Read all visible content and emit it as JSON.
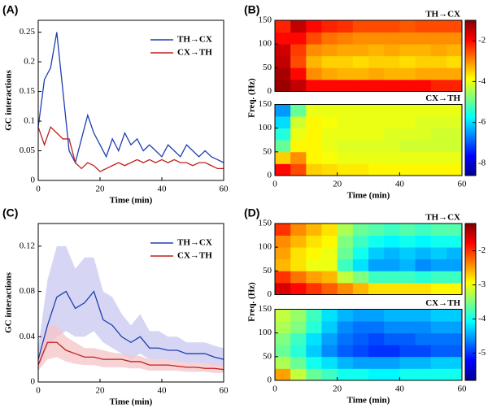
{
  "chart_data": [
    {
      "type": "line",
      "label": "(A)",
      "xlabel": "Time (min)",
      "ylabel": "GC interactions",
      "xlim": [
        0,
        60
      ],
      "xticks": [
        0,
        20,
        40,
        60
      ],
      "ylim": [
        0,
        0.27
      ],
      "yticks": [
        0,
        0.05,
        0.1,
        0.15,
        0.2,
        0.25
      ],
      "x": [
        0,
        2,
        4,
        6,
        8,
        10,
        12,
        14,
        16,
        18,
        20,
        22,
        24,
        26,
        28,
        30,
        32,
        34,
        36,
        38,
        40,
        42,
        44,
        46,
        48,
        50,
        52,
        54,
        56,
        58,
        60
      ],
      "series": [
        {
          "name": "TH→CX",
          "color": "#1f3fb0",
          "values": [
            0.09,
            0.17,
            0.19,
            0.25,
            0.15,
            0.05,
            0.03,
            0.07,
            0.11,
            0.08,
            0.06,
            0.04,
            0.07,
            0.05,
            0.08,
            0.06,
            0.07,
            0.05,
            0.06,
            0.05,
            0.04,
            0.06,
            0.05,
            0.04,
            0.06,
            0.05,
            0.04,
            0.05,
            0.04,
            0.035,
            0.03
          ]
        },
        {
          "name": "CX→TH",
          "color": "#c0201c",
          "values": [
            0.09,
            0.06,
            0.09,
            0.08,
            0.07,
            0.07,
            0.03,
            0.02,
            0.03,
            0.025,
            0.015,
            0.02,
            0.025,
            0.03,
            0.025,
            0.03,
            0.035,
            0.03,
            0.035,
            0.03,
            0.035,
            0.03,
            0.035,
            0.03,
            0.03,
            0.025,
            0.03,
            0.03,
            0.025,
            0.02,
            0.02
          ]
        }
      ]
    },
    {
      "type": "heatmap",
      "label": "(B)",
      "xlabel": "Time (min)",
      "ylabel": "Freq. (Hz)",
      "colormap": "jet",
      "xlim": [
        0,
        60
      ],
      "xticks": [
        0,
        20,
        40,
        60
      ],
      "ylim": [
        0,
        150
      ],
      "yticks": [
        0,
        50,
        100,
        150
      ],
      "clim": [
        -8.6,
        -1
      ],
      "cticks": [
        -2,
        -4,
        -6,
        -8
      ],
      "panels": [
        {
          "title": "TH→CX",
          "values": [
            [
              -1.2,
              -1.5,
              -2,
              -2,
              -2,
              -2,
              -2,
              -2,
              -2,
              -2,
              -2.2,
              -2.2
            ],
            [
              -1.3,
              -2,
              -3,
              -3.2,
              -3.3,
              -3.3,
              -3.2,
              -3.3,
              -3.3,
              -3.2,
              -3.2,
              -3.2
            ],
            [
              -1.5,
              -2.5,
              -3.3,
              -3.5,
              -3.5,
              -3.6,
              -3.5,
              -3.5,
              -3.6,
              -3.5,
              -3.5,
              -3.6
            ],
            [
              -1.6,
              -2.4,
              -3,
              -3.1,
              -3.2,
              -3.2,
              -3.3,
              -3.2,
              -3.3,
              -3.3,
              -3.2,
              -3.3
            ],
            [
              -2,
              -2,
              -2.5,
              -2.8,
              -2.9,
              -3,
              -3,
              -3,
              -3,
              -3,
              -3,
              -3
            ],
            [
              -2.2,
              -1.5,
              -2,
              -2.2,
              -2.3,
              -2.5,
              -2.5,
              -2.5,
              -2.6,
              -2.5,
              -2.5,
              -2.5
            ]
          ]
        },
        {
          "title": "CX→TH",
          "values": [
            [
              -2,
              -2.5,
              -3.5,
              -3.6,
              -3.7,
              -3.7,
              -3.8,
              -3.8,
              -3.8,
              -3.8,
              -3.8,
              -3.8
            ],
            [
              -3.5,
              -3,
              -3.8,
              -3.9,
              -4,
              -4,
              -4,
              -4,
              -4,
              -4,
              -4,
              -4
            ],
            [
              -5,
              -3.8,
              -3.8,
              -4,
              -4.1,
              -4.1,
              -4.1,
              -4.1,
              -4.2,
              -4.2,
              -4.2,
              -4.2
            ],
            [
              -5.5,
              -4,
              -3.8,
              -4,
              -4,
              -4,
              -4,
              -4.1,
              -4.1,
              -4.1,
              -4.2,
              -4.2
            ],
            [
              -6,
              -4.2,
              -3.8,
              -3.9,
              -4,
              -4,
              -4,
              -4,
              -4,
              -4.1,
              -4.1,
              -4.1
            ],
            [
              -6.5,
              -5,
              -4,
              -4,
              -4,
              -4,
              -4,
              -4,
              -4,
              -4,
              -4,
              -4
            ]
          ]
        }
      ]
    },
    {
      "type": "line",
      "label": "(C)",
      "xlabel": "Time (min)",
      "ylabel": "GC interactions",
      "xlim": [
        0,
        60
      ],
      "xticks": [
        0,
        20,
        40,
        60
      ],
      "ylim": [
        0,
        0.14
      ],
      "yticks": [
        0,
        0.04,
        0.08,
        0.12
      ],
      "x": [
        0,
        3,
        6,
        9,
        12,
        15,
        18,
        21,
        24,
        27,
        30,
        33,
        36,
        39,
        42,
        45,
        48,
        51,
        54,
        57,
        60
      ],
      "series": [
        {
          "name": "TH→CX",
          "color": "#1f3fb0",
          "band_color": "#c8c8f0",
          "values": [
            0.02,
            0.05,
            0.075,
            0.08,
            0.065,
            0.07,
            0.08,
            0.055,
            0.05,
            0.04,
            0.035,
            0.04,
            0.03,
            0.03,
            0.028,
            0.028,
            0.025,
            0.025,
            0.025,
            0.022,
            0.02
          ],
          "upper": [
            0.03,
            0.09,
            0.12,
            0.12,
            0.1,
            0.11,
            0.11,
            0.08,
            0.075,
            0.06,
            0.05,
            0.06,
            0.045,
            0.045,
            0.04,
            0.04,
            0.035,
            0.035,
            0.035,
            0.032,
            0.03
          ],
          "lower": [
            0.01,
            0.03,
            0.04,
            0.045,
            0.04,
            0.04,
            0.045,
            0.035,
            0.03,
            0.025,
            0.02,
            0.025,
            0.02,
            0.02,
            0.02,
            0.018,
            0.017,
            0.017,
            0.016,
            0.015,
            0.014
          ]
        },
        {
          "name": "CX→TH",
          "color": "#c0201c",
          "band_color": "#f6c4c8",
          "values": [
            0.015,
            0.035,
            0.035,
            0.028,
            0.025,
            0.022,
            0.022,
            0.02,
            0.02,
            0.02,
            0.018,
            0.018,
            0.015,
            0.015,
            0.015,
            0.014,
            0.013,
            0.013,
            0.012,
            0.012,
            0.011
          ],
          "upper": [
            0.02,
            0.05,
            0.05,
            0.04,
            0.035,
            0.03,
            0.03,
            0.028,
            0.026,
            0.025,
            0.023,
            0.023,
            0.02,
            0.02,
            0.02,
            0.018,
            0.017,
            0.017,
            0.016,
            0.016,
            0.015
          ],
          "lower": [
            0.01,
            0.02,
            0.022,
            0.018,
            0.016,
            0.015,
            0.015,
            0.013,
            0.013,
            0.013,
            0.012,
            0.012,
            0.01,
            0.01,
            0.01,
            0.01,
            0.009,
            0.009,
            0.009,
            0.008,
            0.008
          ]
        }
      ]
    },
    {
      "type": "heatmap",
      "label": "(D)",
      "xlabel": "Time (min)",
      "ylabel": "Freq. (Hz)",
      "colormap": "jet",
      "xlim": [
        0,
        60
      ],
      "xticks": [
        0,
        20,
        40,
        60
      ],
      "ylim": [
        0,
        150
      ],
      "yticks": [
        0,
        50,
        100,
        150
      ],
      "clim": [
        -5.8,
        -1.2
      ],
      "cticks": [
        -2,
        -3,
        -4,
        -5
      ],
      "panels": [
        {
          "title": "TH→CX",
          "values": [
            [
              -1.6,
              -1.8,
              -2,
              -2.2,
              -2.4,
              -2.6,
              -2.8,
              -2.8,
              -2.8,
              -2.8,
              -2.9,
              -2.9
            ],
            [
              -2,
              -2.3,
              -2.5,
              -2.6,
              -3.2,
              -3.5,
              -3.8,
              -3.8,
              -3.8,
              -3.9,
              -3.8,
              -3.8
            ],
            [
              -2.6,
              -2.8,
              -3,
              -3,
              -3.8,
              -4.2,
              -4.5,
              -4.5,
              -4.4,
              -4.6,
              -4.5,
              -4.5
            ],
            [
              -2.5,
              -2.8,
              -2.9,
              -3,
              -3.6,
              -4,
              -4.3,
              -4.4,
              -4.3,
              -4.4,
              -4.3,
              -4.4
            ],
            [
              -2.4,
              -2.6,
              -2.8,
              -2.9,
              -3.5,
              -3.8,
              -4,
              -4.1,
              -4,
              -4.1,
              -4,
              -4
            ],
            [
              -2,
              -2.4,
              -2.6,
              -2.8,
              -3.3,
              -3.6,
              -3.7,
              -3.8,
              -3.7,
              -3.8,
              -3.7,
              -3.7
            ]
          ]
        },
        {
          "title": "CX→TH",
          "values": [
            [
              -2.5,
              -3.2,
              -3.6,
              -3.8,
              -4,
              -4,
              -4.1,
              -4.1,
              -4,
              -4,
              -4,
              -4
            ],
            [
              -3.3,
              -3.6,
              -4,
              -4.2,
              -4.4,
              -4.5,
              -4.5,
              -4.5,
              -4.4,
              -4.4,
              -4.3,
              -4.3
            ],
            [
              -3.6,
              -3.9,
              -4.3,
              -4.6,
              -4.8,
              -4.9,
              -5,
              -5,
              -4.9,
              -4.9,
              -4.8,
              -4.8
            ],
            [
              -3.5,
              -3.8,
              -4.2,
              -4.5,
              -4.7,
              -4.8,
              -4.9,
              -4.8,
              -4.8,
              -4.7,
              -4.7,
              -4.7
            ],
            [
              -3.3,
              -3.5,
              -3.9,
              -4.3,
              -4.6,
              -4.7,
              -4.7,
              -4.6,
              -4.6,
              -4.6,
              -4.5,
              -4.5
            ],
            [
              -3.2,
              -3.4,
              -3.8,
              -4.2,
              -4.4,
              -4.5,
              -4.5,
              -4.4,
              -4.4,
              -4.4,
              -4.3,
              -4.3
            ]
          ]
        }
      ]
    }
  ]
}
